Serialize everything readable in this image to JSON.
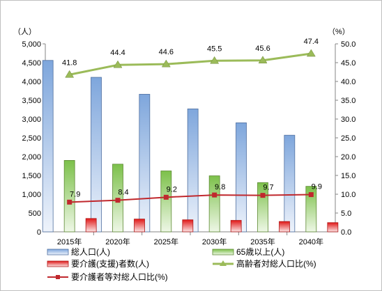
{
  "chart_data": {
    "type": "bar",
    "categories": [
      "2015年",
      "2020年",
      "2025年",
      "2030年",
      "2035年",
      "2040年"
    ],
    "left_axis": {
      "unit": "（人）",
      "ylim": [
        0,
        5000
      ],
      "ticks": [
        "0",
        "500",
        "1,000",
        "1,500",
        "2,000",
        "2,500",
        "3,000",
        "3,500",
        "4,000",
        "4,500",
        "5,000"
      ]
    },
    "right_axis": {
      "unit": "（%）",
      "ylim": [
        0,
        50
      ],
      "ticks": [
        "0.0",
        "5.0",
        "10.0",
        "15.0",
        "20.0",
        "25.0",
        "30.0",
        "35.0",
        "40.0",
        "45.0",
        "50.0"
      ]
    },
    "series": [
      {
        "name": "総人口(人)",
        "type": "bar",
        "axis": "left",
        "color": "#4f81bd",
        "values": [
          4560,
          4110,
          3660,
          3270,
          2900,
          2570
        ]
      },
      {
        "name": "65歳以上(人)",
        "type": "bar",
        "axis": "left",
        "color": "#77b039",
        "values": [
          1900,
          1800,
          1620,
          1490,
          1310,
          1210
        ]
      },
      {
        "name": "要介護(支援)者数(人)",
        "type": "bar",
        "axis": "left",
        "color": "#e02020",
        "values": [
          355,
          340,
          320,
          305,
          275,
          245
        ]
      },
      {
        "name": "高齢者対総人口比(%)",
        "type": "line",
        "axis": "right",
        "color": "#9bbb59",
        "marker": "triangle",
        "values": [
          41.8,
          44.4,
          44.6,
          45.5,
          45.6,
          47.4
        ],
        "labels": [
          "41.8",
          "44.4",
          "44.6",
          "45.5",
          "45.6",
          "47.4"
        ]
      },
      {
        "name": "要介護者等対総人口比(%)",
        "type": "line",
        "axis": "right",
        "color": "#c0282d",
        "marker": "square",
        "values": [
          7.9,
          8.4,
          9.2,
          9.8,
          9.7,
          9.9
        ],
        "labels": [
          "7.9",
          "8.4",
          "9.2",
          "9.8",
          "9.7",
          "9.9"
        ]
      }
    ],
    "grid": false,
    "legend_position": "bottom"
  }
}
